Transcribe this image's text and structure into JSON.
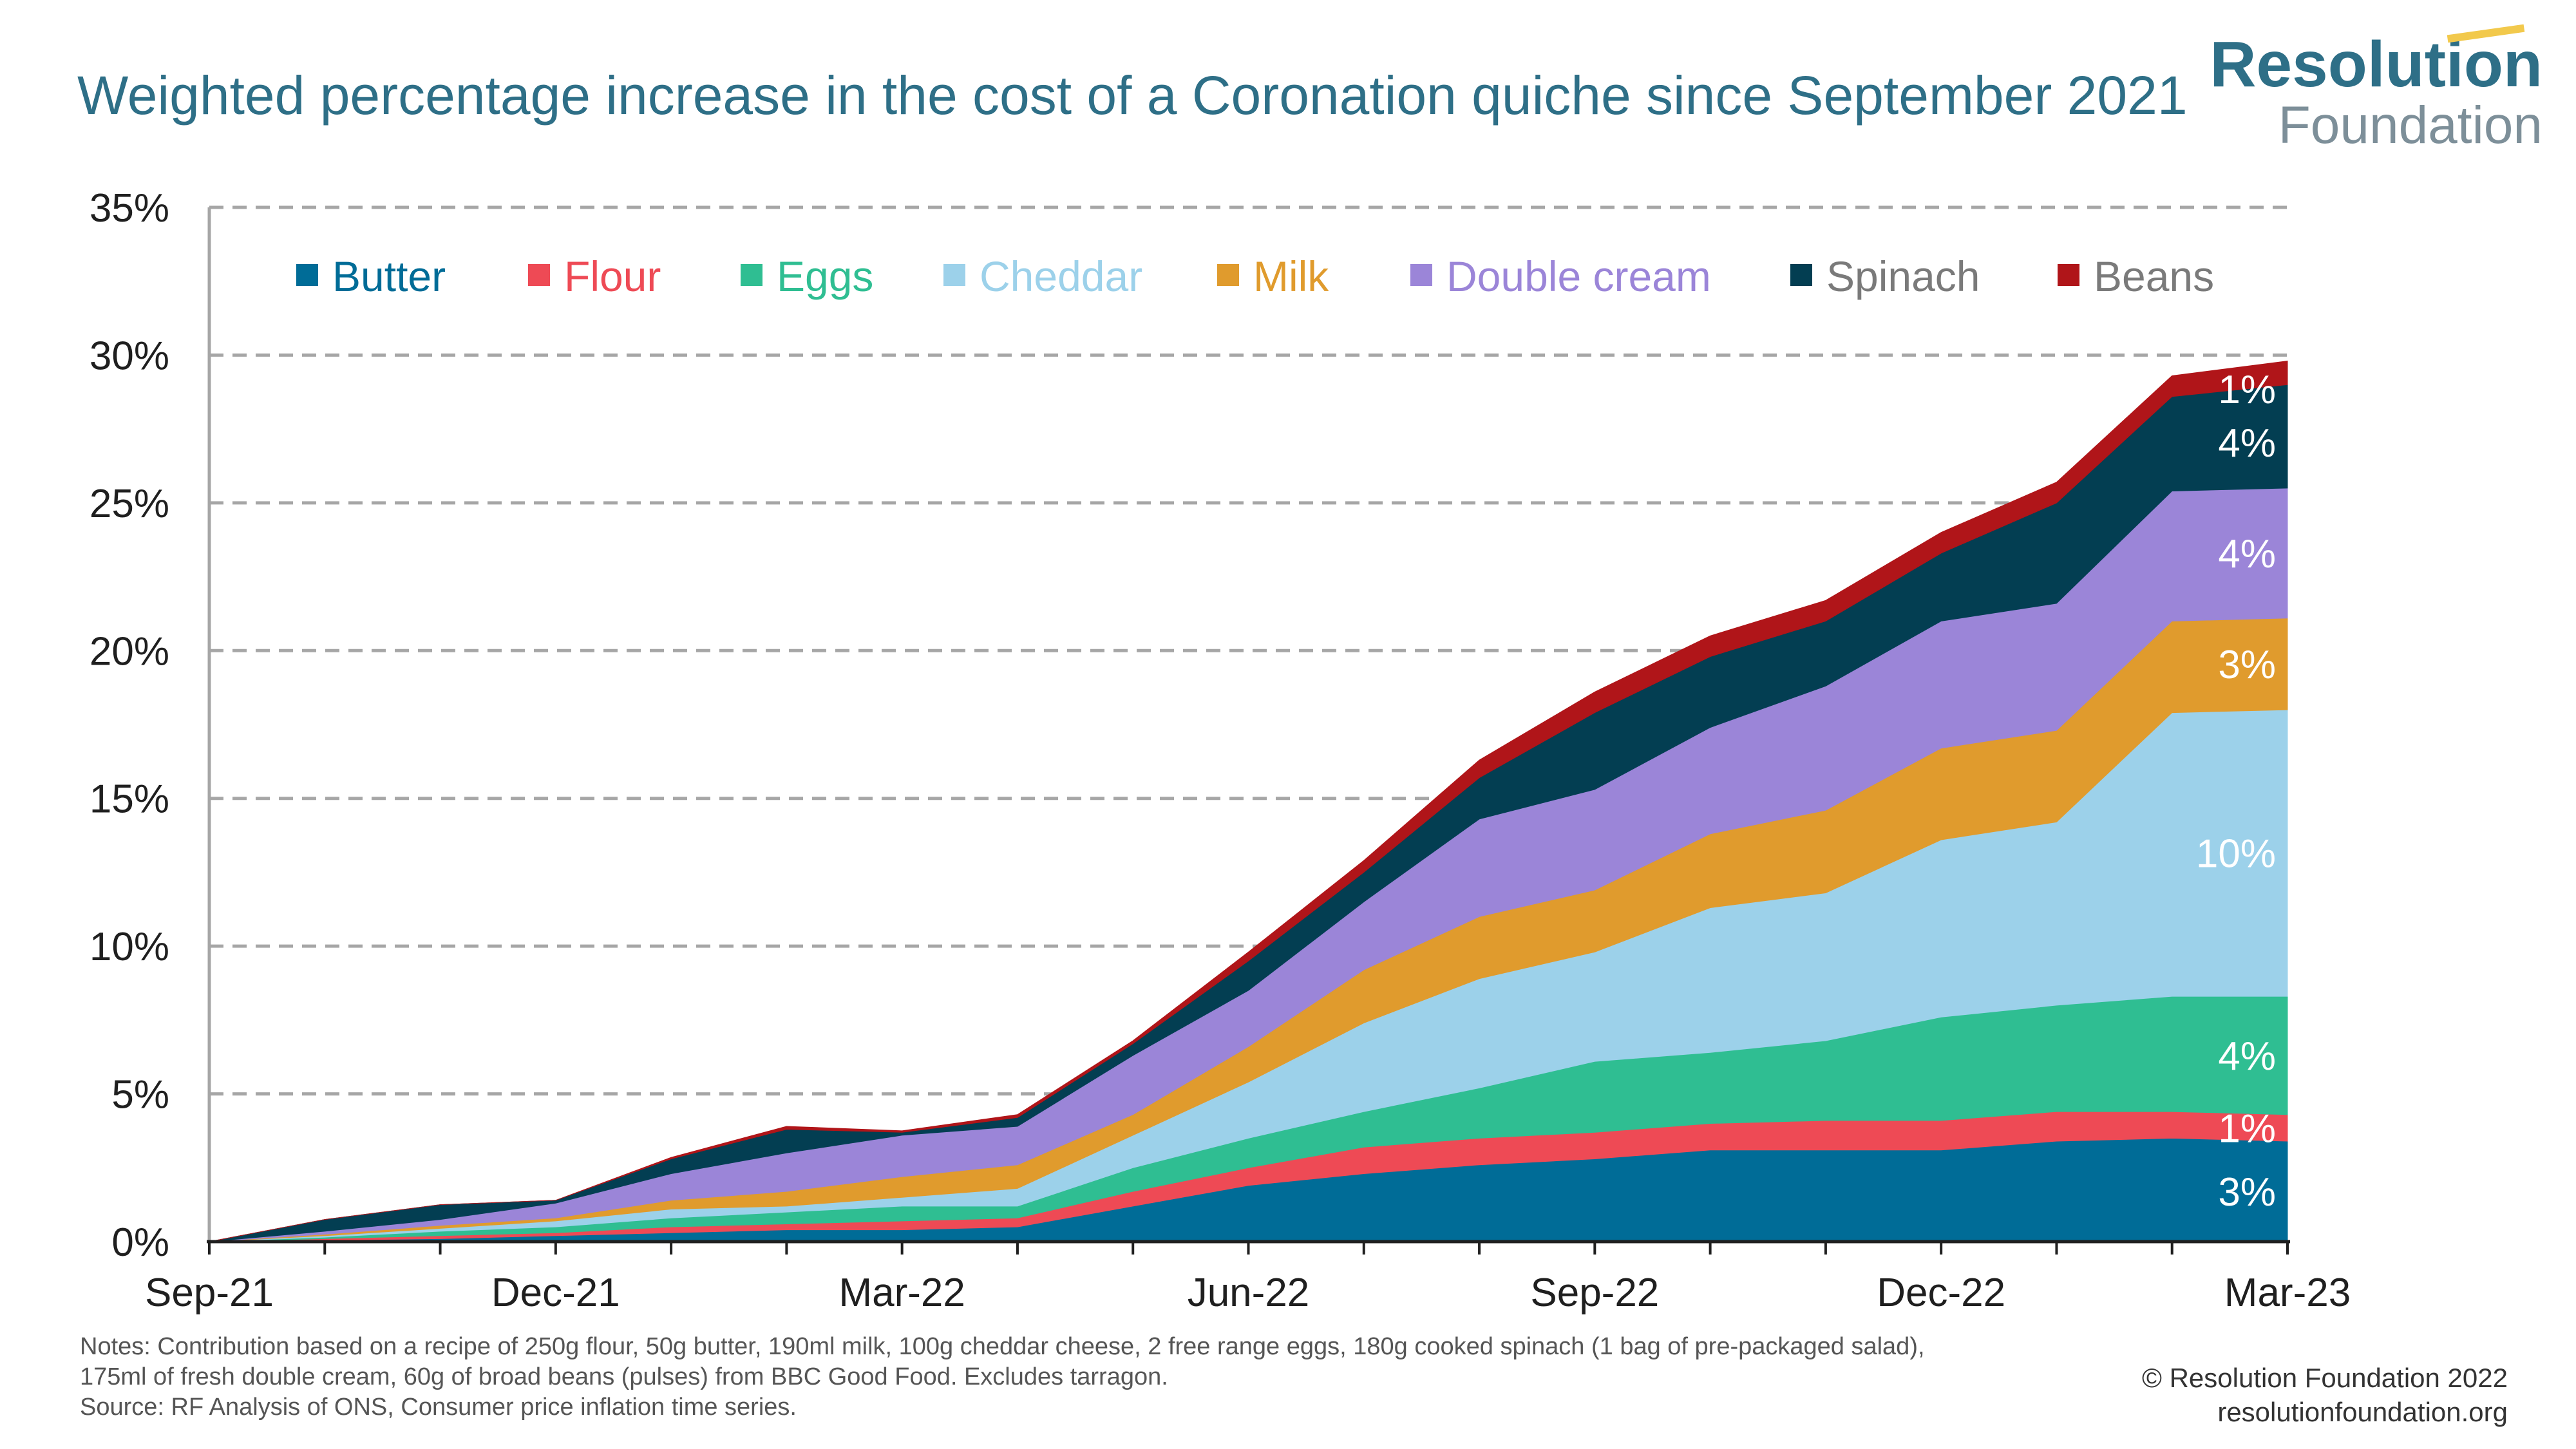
{
  "title": "Weighted percentage increase in the cost of a Coronation quiche since September 2021",
  "logo": {
    "name": "Resolution",
    "sub": "Foundation"
  },
  "notes": [
    "Notes: Contribution based on a recipe of 250g flour, 50g  butter, 190ml milk, 100g cheddar cheese, 2 free range eggs, 180g cooked spinach (1 bag of pre-packaged salad),",
    "175ml of fresh double cream, 60g of broad beans (pulses) from BBC Good Food. Excludes tarragon.",
    "Source: RF Analysis of ONS, Consumer price inflation time series."
  ],
  "copyright": {
    "line1": "© Resolution Foundation 2022",
    "line2": "resolutionfoundation.org"
  },
  "chart_data": {
    "type": "area",
    "stacked": true,
    "title": "Weighted percentage increase in the cost of a Coronation quiche since September 2021",
    "x": [
      "Sep-21",
      "Oct-21",
      "Nov-21",
      "Dec-21",
      "Jan-22",
      "Feb-22",
      "Mar-22",
      "Apr-22",
      "May-22",
      "Jun-22",
      "Jul-22",
      "Aug-22",
      "Sep-22",
      "Oct-22",
      "Nov-22",
      "Dec-22",
      "Jan-23",
      "Feb-23",
      "Mar-23"
    ],
    "x_tick_labels": [
      "Sep-21",
      "Dec-21",
      "Mar-22",
      "Jun-22",
      "Sep-22",
      "Dec-22",
      "Mar-23"
    ],
    "y_tick_labels": [
      "0%",
      "5%",
      "10%",
      "15%",
      "20%",
      "25%",
      "30%",
      "35%"
    ],
    "ylim": [
      0,
      35
    ],
    "y_unit": "%",
    "grid": "horizontal dashed",
    "legend_position": "top",
    "series": [
      {
        "name": "Butter",
        "color": "#006c97",
        "values": [
          0,
          0.05,
          0.1,
          0.2,
          0.3,
          0.4,
          0.4,
          0.5,
          1.2,
          1.9,
          2.3,
          2.6,
          2.8,
          3.1,
          3.1,
          3.1,
          3.4,
          3.5,
          3.4
        ]
      },
      {
        "name": "Flour",
        "color": "#ee4a55",
        "values": [
          0,
          0.05,
          0.1,
          0.1,
          0.2,
          0.2,
          0.3,
          0.3,
          0.5,
          0.6,
          0.9,
          0.9,
          0.9,
          0.9,
          1.0,
          1.0,
          1.0,
          0.9,
          0.9
        ]
      },
      {
        "name": "Eggs",
        "color": "#2fbe92",
        "values": [
          0,
          0.05,
          0.15,
          0.2,
          0.3,
          0.4,
          0.5,
          0.4,
          0.8,
          1.0,
          1.2,
          1.7,
          2.4,
          2.4,
          2.7,
          3.5,
          3.6,
          3.9,
          4.0
        ]
      },
      {
        "name": "Cheddar",
        "color": "#9cd1ea",
        "values": [
          0,
          0.05,
          0.1,
          0.2,
          0.3,
          0.2,
          0.3,
          0.6,
          1.1,
          1.9,
          3.0,
          3.7,
          3.7,
          4.9,
          5.0,
          6.0,
          6.2,
          9.6,
          9.7
        ]
      },
      {
        "name": "Milk",
        "color": "#e09b2d",
        "values": [
          0,
          0.05,
          0.1,
          0.1,
          0.3,
          0.5,
          0.7,
          0.8,
          0.7,
          1.2,
          1.8,
          2.1,
          2.1,
          2.5,
          2.8,
          3.1,
          3.1,
          3.1,
          3.1
        ]
      },
      {
        "name": "Double cream",
        "color": "#9b85d8",
        "values": [
          0,
          0.1,
          0.2,
          0.5,
          0.9,
          1.3,
          1.4,
          1.3,
          2.0,
          1.9,
          2.3,
          3.3,
          3.4,
          3.6,
          4.2,
          4.3,
          4.3,
          4.4,
          4.4
        ]
      },
      {
        "name": "Spinach",
        "color": "#033e52",
        "values": [
          0,
          0.4,
          0.5,
          0.1,
          0.5,
          0.8,
          0.1,
          0.3,
          0.4,
          1.0,
          1.0,
          1.4,
          2.6,
          2.4,
          2.2,
          2.3,
          3.4,
          3.2,
          3.5
        ]
      },
      {
        "name": "Beans",
        "color": "#b01519",
        "values": [
          0,
          0,
          0,
          0,
          0.05,
          0.1,
          0.05,
          0.1,
          0.1,
          0.3,
          0.4,
          0.6,
          0.7,
          0.7,
          0.7,
          0.7,
          0.7,
          0.7,
          0.8
        ]
      }
    ],
    "end_labels": [
      {
        "series": "Beans",
        "text": "1%"
      },
      {
        "series": "Spinach",
        "text": "4%"
      },
      {
        "series": "Double cream",
        "text": "4%"
      },
      {
        "series": "Milk",
        "text": "3%"
      },
      {
        "series": "Cheddar",
        "text": "10%"
      },
      {
        "series": "Eggs",
        "text": "4%"
      },
      {
        "series": "Flour",
        "text": "1%"
      },
      {
        "series": "Butter",
        "text": "3%"
      }
    ]
  }
}
